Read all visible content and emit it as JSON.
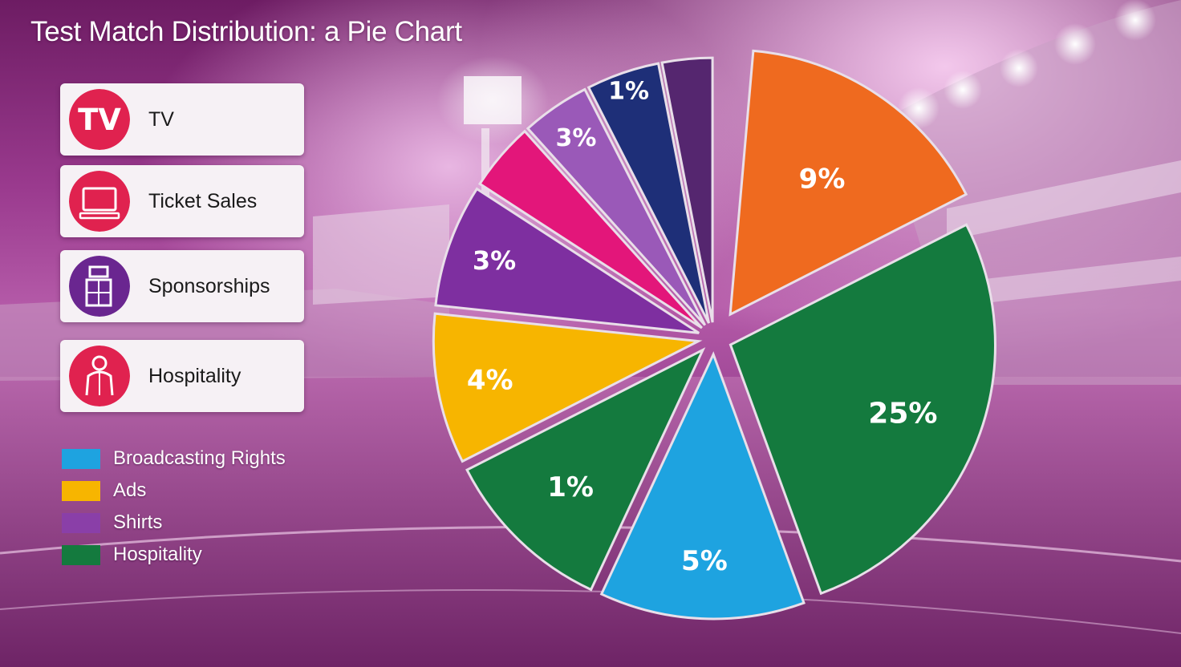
{
  "title": "Test Match Distribution: a Pie Chart",
  "cards": [
    {
      "label": "TV",
      "icon": "tv-text-icon",
      "icon_text": "TV",
      "color": "#e0224f"
    },
    {
      "label": "Ticket Sales",
      "icon": "television-icon",
      "color": "#e0224f"
    },
    {
      "label": "Sponsorships",
      "icon": "building-icon",
      "color": "#6a2690"
    },
    {
      "label": "Hospitality",
      "icon": "person-icon",
      "color": "#e0224f"
    }
  ],
  "legend": [
    {
      "label": "Broadcasting Rights",
      "color": "#1ea3e0"
    },
    {
      "label": "Ads",
      "color": "#f7b500"
    },
    {
      "label": "Shirts",
      "color": "#8a3fa8"
    },
    {
      "label": "Hospitality",
      "color": "#147a3e"
    }
  ],
  "chart_data": {
    "type": "pie",
    "slices": [
      {
        "label": "9%",
        "color": "#ef6a1f"
      },
      {
        "label": "25%",
        "color": "#147a3e"
      },
      {
        "label": "5%",
        "color": "#1ea3e0"
      },
      {
        "label": "1%",
        "color": "#147a3e"
      },
      {
        "label": "4%",
        "color": "#f7b500"
      },
      {
        "label": "3%",
        "color": "#7e2fa0"
      },
      {
        "label": "",
        "color": "#e3167a"
      },
      {
        "label": "3%",
        "color": "#9a59b8"
      },
      {
        "label": "1%",
        "color": "#1e2f78"
      },
      {
        "label": "",
        "color": "#55266f"
      }
    ]
  }
}
